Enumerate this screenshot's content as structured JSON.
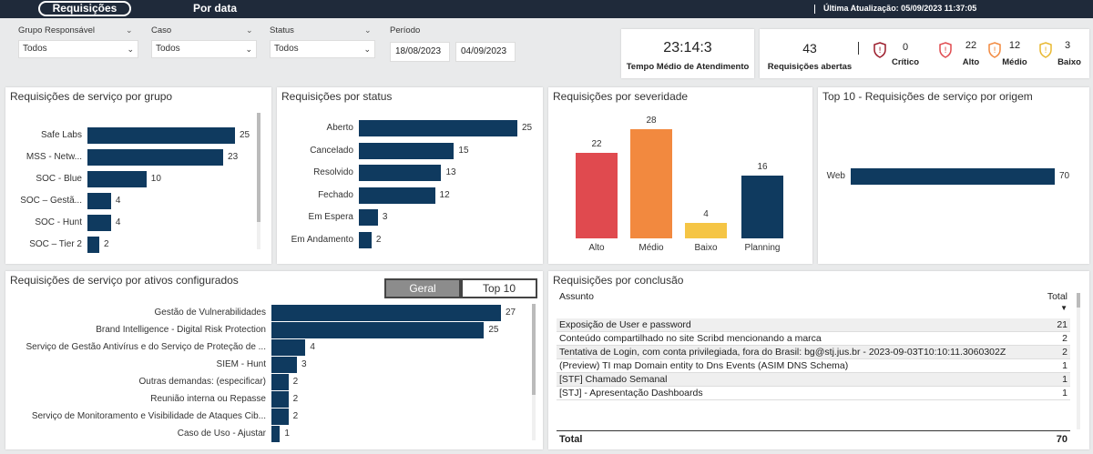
{
  "topbar": {
    "tab_active": "Requisições",
    "tab_other": "Por data",
    "last_update": "Última Atualização: 05/09/2023 11:37:05"
  },
  "filters": {
    "group": {
      "label": "Grupo Responsável",
      "value": "Todos"
    },
    "case": {
      "label": "Caso",
      "value": "Todos"
    },
    "status": {
      "label": "Status",
      "value": "Todos"
    },
    "period": {
      "label": "Período",
      "start": "18/08/2023",
      "end": "04/09/2023"
    }
  },
  "kpi": {
    "avg_time": "23:14:3",
    "avg_time_label": "Tempo Médio de Atendimento",
    "open": "43",
    "open_label": "Requisições abertas",
    "critico": "0",
    "critico_label": "Crítico",
    "alto": "22",
    "alto_label": "Alto",
    "medio": "12",
    "medio_label": "Médio",
    "baixo": "3",
    "baixo_label": "Baixo"
  },
  "colors": {
    "navy": "#0f3a5f",
    "alto": "#e04a4f",
    "medio": "#f2893f",
    "baixo": "#f5c545",
    "planning": "#0f3a5f"
  },
  "chart_data": [
    {
      "type": "bar",
      "title": "Requisições de serviço por grupo",
      "categories": [
        "Safe Labs",
        "MSS - Netw...",
        "SOC - Blue",
        "SOC – Gestã...",
        "SOC - Hunt",
        "SOC – Tier 2"
      ],
      "values": [
        25,
        23,
        10,
        4,
        4,
        2
      ]
    },
    {
      "type": "bar",
      "title": "Requisições por status",
      "categories": [
        "Aberto",
        "Cancelado",
        "Resolvido",
        "Fechado",
        "Em Espera",
        "Em Andamento"
      ],
      "values": [
        25,
        15,
        13,
        12,
        3,
        2
      ]
    },
    {
      "type": "bar",
      "title": "Requisições por severidade",
      "categories": [
        "Alto",
        "Médio",
        "Baixo",
        "Planning"
      ],
      "values": [
        22,
        28,
        4,
        16
      ]
    },
    {
      "type": "bar",
      "title": "Top 10 - Requisições de serviço por origem",
      "categories": [
        "Web"
      ],
      "values": [
        70
      ]
    },
    {
      "type": "bar",
      "title": "Requisições de serviço por ativos configurados",
      "categories": [
        "Gestão de Vulnerabilidades",
        "Brand Intelligence - Digital Risk Protection",
        "Serviço de Gestão Antivírus e do Serviço de Proteção de ...",
        "SIEM - Hunt",
        "Outras demandas: (especificar)",
        "Reunião interna ou Repasse",
        "Serviço de Monitoramento e Visibilidade de Ataques Cib...",
        "Caso de Uso - Ajustar"
      ],
      "values": [
        27,
        25,
        4,
        3,
        2,
        2,
        2,
        1
      ]
    }
  ],
  "toggle": {
    "geral": "Geral",
    "top10": "Top 10"
  },
  "conclusion": {
    "title": "Requisições por conclusão",
    "col_subject": "Assunto",
    "col_total": "Total",
    "rows": [
      {
        "subject": "Exposição de User e password",
        "total": "21"
      },
      {
        "subject": "Conteúdo compartilhado no site Scribd mencionando a marca",
        "total": "2"
      },
      {
        "subject": "Tentativa de Login, com conta privilegiada, fora do Brasil: bg@stj.jus.br - 2023-09-03T10:10:11.3060302Z",
        "total": "2"
      },
      {
        "subject": "(Preview) TI map Domain entity to Dns Events (ASIM DNS Schema)",
        "total": "1"
      },
      {
        "subject": "[STF] Chamado Semanal",
        "total": "1"
      },
      {
        "subject": "[STJ] - Apresentação Dashboards",
        "total": "1"
      }
    ],
    "total_label": "Total",
    "total_value": "70"
  }
}
